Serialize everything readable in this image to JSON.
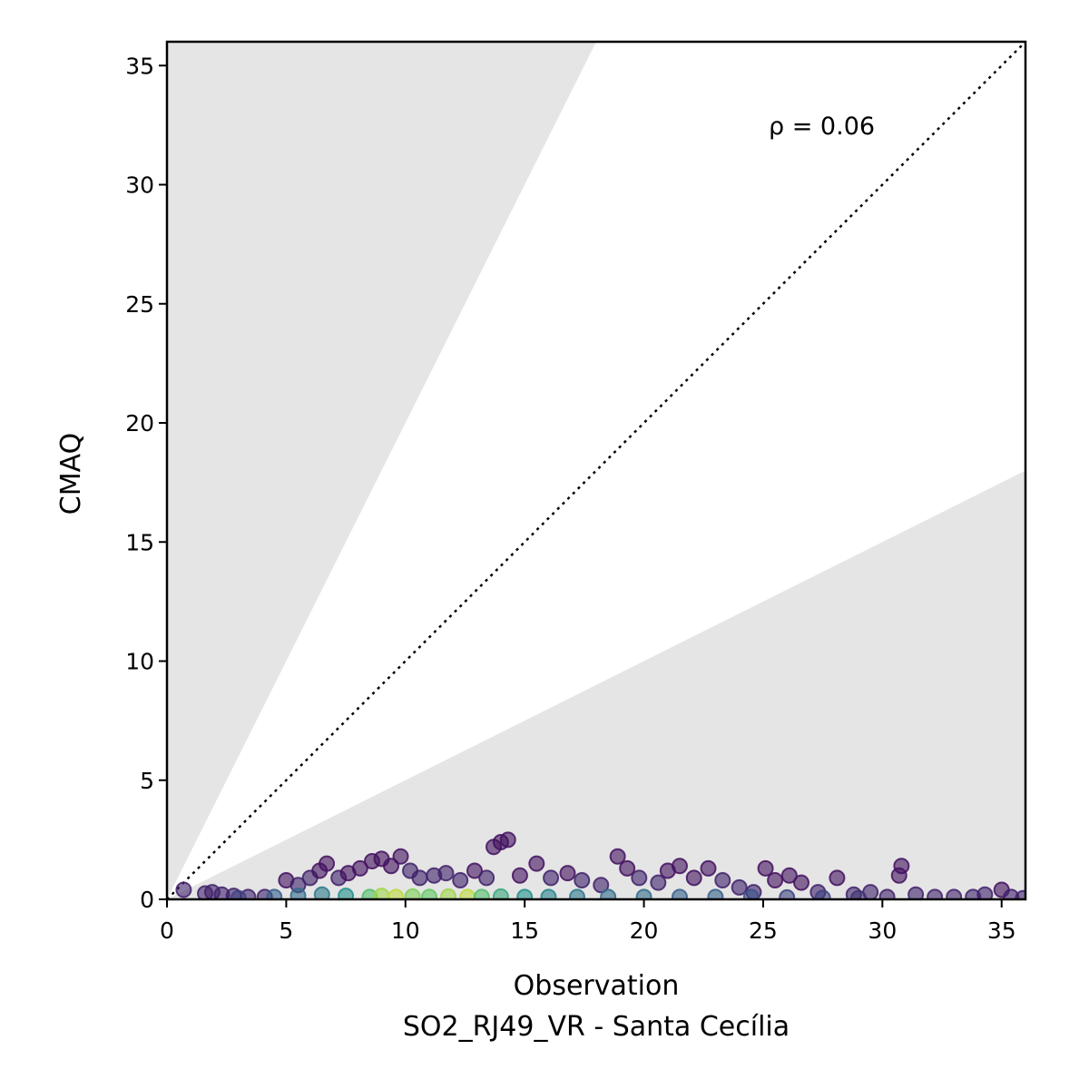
{
  "chart_data": {
    "type": "scatter",
    "xlabel": "Observation",
    "xlabel_sub": "SO2_RJ49_VR - Santa Cecília",
    "ylabel": "CMAQ",
    "annotation": "ρ = 0.06",
    "xlim": [
      0,
      36
    ],
    "ylim": [
      0,
      36
    ],
    "x_ticks": [
      0,
      5,
      10,
      15,
      20,
      25,
      30,
      35
    ],
    "y_ticks": [
      0,
      5,
      10,
      15,
      20,
      25,
      30,
      35
    ],
    "reference_line": {
      "style": "dotted",
      "slope": 1,
      "color": "#000000"
    },
    "shaded_regions": [
      {
        "description": "above factor-of-2 line",
        "slope": 2,
        "color": "#e5e5e5"
      },
      {
        "description": "below factor-of-0.5 line",
        "slope": 0.5,
        "color": "#e5e5e5"
      }
    ],
    "colormap": "viridis",
    "point_alpha": 0.6,
    "grid": false,
    "series": [
      {
        "values": [
          [
            0.7,
            0.4,
            0.1
          ],
          [
            1.6,
            0.25,
            0.1
          ],
          [
            1.9,
            0.3,
            0.1
          ],
          [
            2.3,
            0.2,
            0.1
          ],
          [
            2.8,
            0.15,
            0.1
          ],
          [
            3.4,
            0.1,
            0.1
          ],
          [
            4.1,
            0.1,
            0.1
          ],
          [
            5.0,
            0.8,
            0.05
          ],
          [
            5.5,
            0.6,
            0.1
          ],
          [
            6.0,
            0.9,
            0.1
          ],
          [
            6.4,
            1.2,
            0.05
          ],
          [
            6.7,
            1.5,
            0.05
          ],
          [
            7.2,
            0.9,
            0.1
          ],
          [
            7.6,
            1.1,
            0.05
          ],
          [
            8.1,
            1.3,
            0.05
          ],
          [
            8.6,
            1.6,
            0.05
          ],
          [
            9.0,
            1.7,
            0.05
          ],
          [
            9.4,
            1.4,
            0.05
          ],
          [
            9.8,
            1.8,
            0.05
          ],
          [
            10.2,
            1.2,
            0.1
          ],
          [
            10.6,
            0.9,
            0.1
          ],
          [
            11.2,
            1.0,
            0.1
          ],
          [
            11.7,
            1.1,
            0.1
          ],
          [
            12.3,
            0.8,
            0.1
          ],
          [
            12.9,
            1.2,
            0.05
          ],
          [
            13.4,
            0.9,
            0.1
          ],
          [
            13.7,
            2.2,
            0.05
          ],
          [
            14.0,
            2.4,
            0.05
          ],
          [
            14.3,
            2.5,
            0.05
          ],
          [
            14.8,
            1.0,
            0.05
          ],
          [
            15.5,
            1.5,
            0.05
          ],
          [
            16.1,
            0.9,
            0.1
          ],
          [
            16.8,
            1.1,
            0.05
          ],
          [
            17.4,
            0.8,
            0.1
          ],
          [
            18.2,
            0.6,
            0.1
          ],
          [
            18.9,
            1.8,
            0.05
          ],
          [
            19.3,
            1.3,
            0.05
          ],
          [
            19.8,
            0.9,
            0.1
          ],
          [
            20.6,
            0.7,
            0.1
          ],
          [
            21.0,
            1.2,
            0.05
          ],
          [
            21.5,
            1.4,
            0.05
          ],
          [
            22.1,
            0.9,
            0.05
          ],
          [
            22.7,
            1.3,
            0.05
          ],
          [
            23.3,
            0.8,
            0.1
          ],
          [
            24.0,
            0.5,
            0.1
          ],
          [
            24.6,
            0.3,
            0.1
          ],
          [
            25.1,
            1.3,
            0.05
          ],
          [
            25.5,
            0.8,
            0.05
          ],
          [
            26.1,
            1.0,
            0.05
          ],
          [
            26.6,
            0.7,
            0.05
          ],
          [
            27.3,
            0.3,
            0.1
          ],
          [
            28.1,
            0.9,
            0.05
          ],
          [
            28.8,
            0.2,
            0.1
          ],
          [
            29.5,
            0.3,
            0.1
          ],
          [
            30.2,
            0.1,
            0.1
          ],
          [
            30.7,
            1.0,
            0.05
          ],
          [
            30.8,
            1.4,
            0.05
          ],
          [
            31.4,
            0.2,
            0.1
          ],
          [
            32.2,
            0.1,
            0.1
          ],
          [
            33.0,
            0.1,
            0.1
          ],
          [
            33.8,
            0.1,
            0.1
          ],
          [
            34.3,
            0.2,
            0.1
          ],
          [
            35.0,
            0.4,
            0.05
          ],
          [
            35.4,
            0.1,
            0.1
          ],
          [
            35.9,
            0.05,
            0.1
          ],
          [
            6.5,
            0.2,
            0.4
          ],
          [
            7.5,
            0.15,
            0.5
          ],
          [
            8.5,
            0.1,
            0.7
          ],
          [
            9.0,
            0.15,
            0.85
          ],
          [
            9.6,
            0.1,
            0.9
          ],
          [
            10.3,
            0.12,
            0.8
          ],
          [
            11.0,
            0.1,
            0.75
          ],
          [
            11.8,
            0.12,
            0.85
          ],
          [
            12.6,
            0.1,
            0.9
          ],
          [
            13.2,
            0.1,
            0.7
          ],
          [
            14.0,
            0.12,
            0.6
          ],
          [
            15.0,
            0.1,
            0.5
          ],
          [
            16.0,
            0.1,
            0.45
          ],
          [
            17.2,
            0.1,
            0.4
          ],
          [
            18.5,
            0.1,
            0.35
          ],
          [
            20.0,
            0.1,
            0.35
          ],
          [
            21.5,
            0.1,
            0.3
          ],
          [
            23.0,
            0.1,
            0.3
          ],
          [
            24.5,
            0.1,
            0.25
          ],
          [
            26.0,
            0.08,
            0.2
          ],
          [
            27.5,
            0.06,
            0.2
          ],
          [
            29.0,
            0.05,
            0.15
          ],
          [
            4.5,
            0.1,
            0.3
          ],
          [
            5.5,
            0.15,
            0.35
          ],
          [
            3.0,
            0.05,
            0.2
          ]
        ]
      }
    ]
  }
}
